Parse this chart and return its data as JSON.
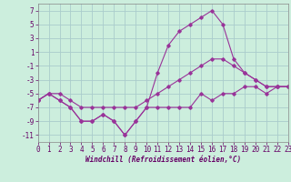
{
  "xlabel": "Windchill (Refroidissement éolien,°C)",
  "bg_color": "#cceedd",
  "grid_color": "#aacccc",
  "line_color": "#993399",
  "hours": [
    0,
    1,
    2,
    3,
    4,
    5,
    6,
    7,
    8,
    9,
    10,
    11,
    12,
    13,
    14,
    15,
    16,
    17,
    18,
    19,
    20,
    21,
    22,
    23
  ],
  "windchill": [
    -6,
    -5,
    -6,
    -7,
    -9,
    -9,
    -8,
    -9,
    -11,
    -9,
    -7,
    -2,
    2,
    4,
    5,
    6,
    7,
    5,
    0,
    -2,
    -3,
    -4,
    -4,
    -4
  ],
  "temp": [
    -6,
    -5,
    -6,
    -7,
    -9,
    -9,
    -8,
    -9,
    -11,
    -9,
    -7,
    -7,
    -7,
    -7,
    -7,
    -5,
    -6,
    -5,
    -5,
    -4,
    -4,
    -5,
    -4,
    -4
  ],
  "line3": [
    -6,
    -5,
    -5,
    -6,
    -7,
    -7,
    -7,
    -7,
    -7,
    -7,
    -6,
    -5,
    -4,
    -3,
    -2,
    -1,
    0,
    0,
    -1,
    -2,
    -3,
    -4,
    -4,
    -4
  ],
  "ylim": [
    -12,
    8
  ],
  "xlim": [
    0,
    23
  ],
  "yticks": [
    -11,
    -9,
    -7,
    -5,
    -3,
    -1,
    1,
    3,
    5,
    7
  ],
  "xticks": [
    0,
    1,
    2,
    3,
    4,
    5,
    6,
    7,
    8,
    9,
    10,
    11,
    12,
    13,
    14,
    15,
    16,
    17,
    18,
    19,
    20,
    21,
    22,
    23
  ]
}
